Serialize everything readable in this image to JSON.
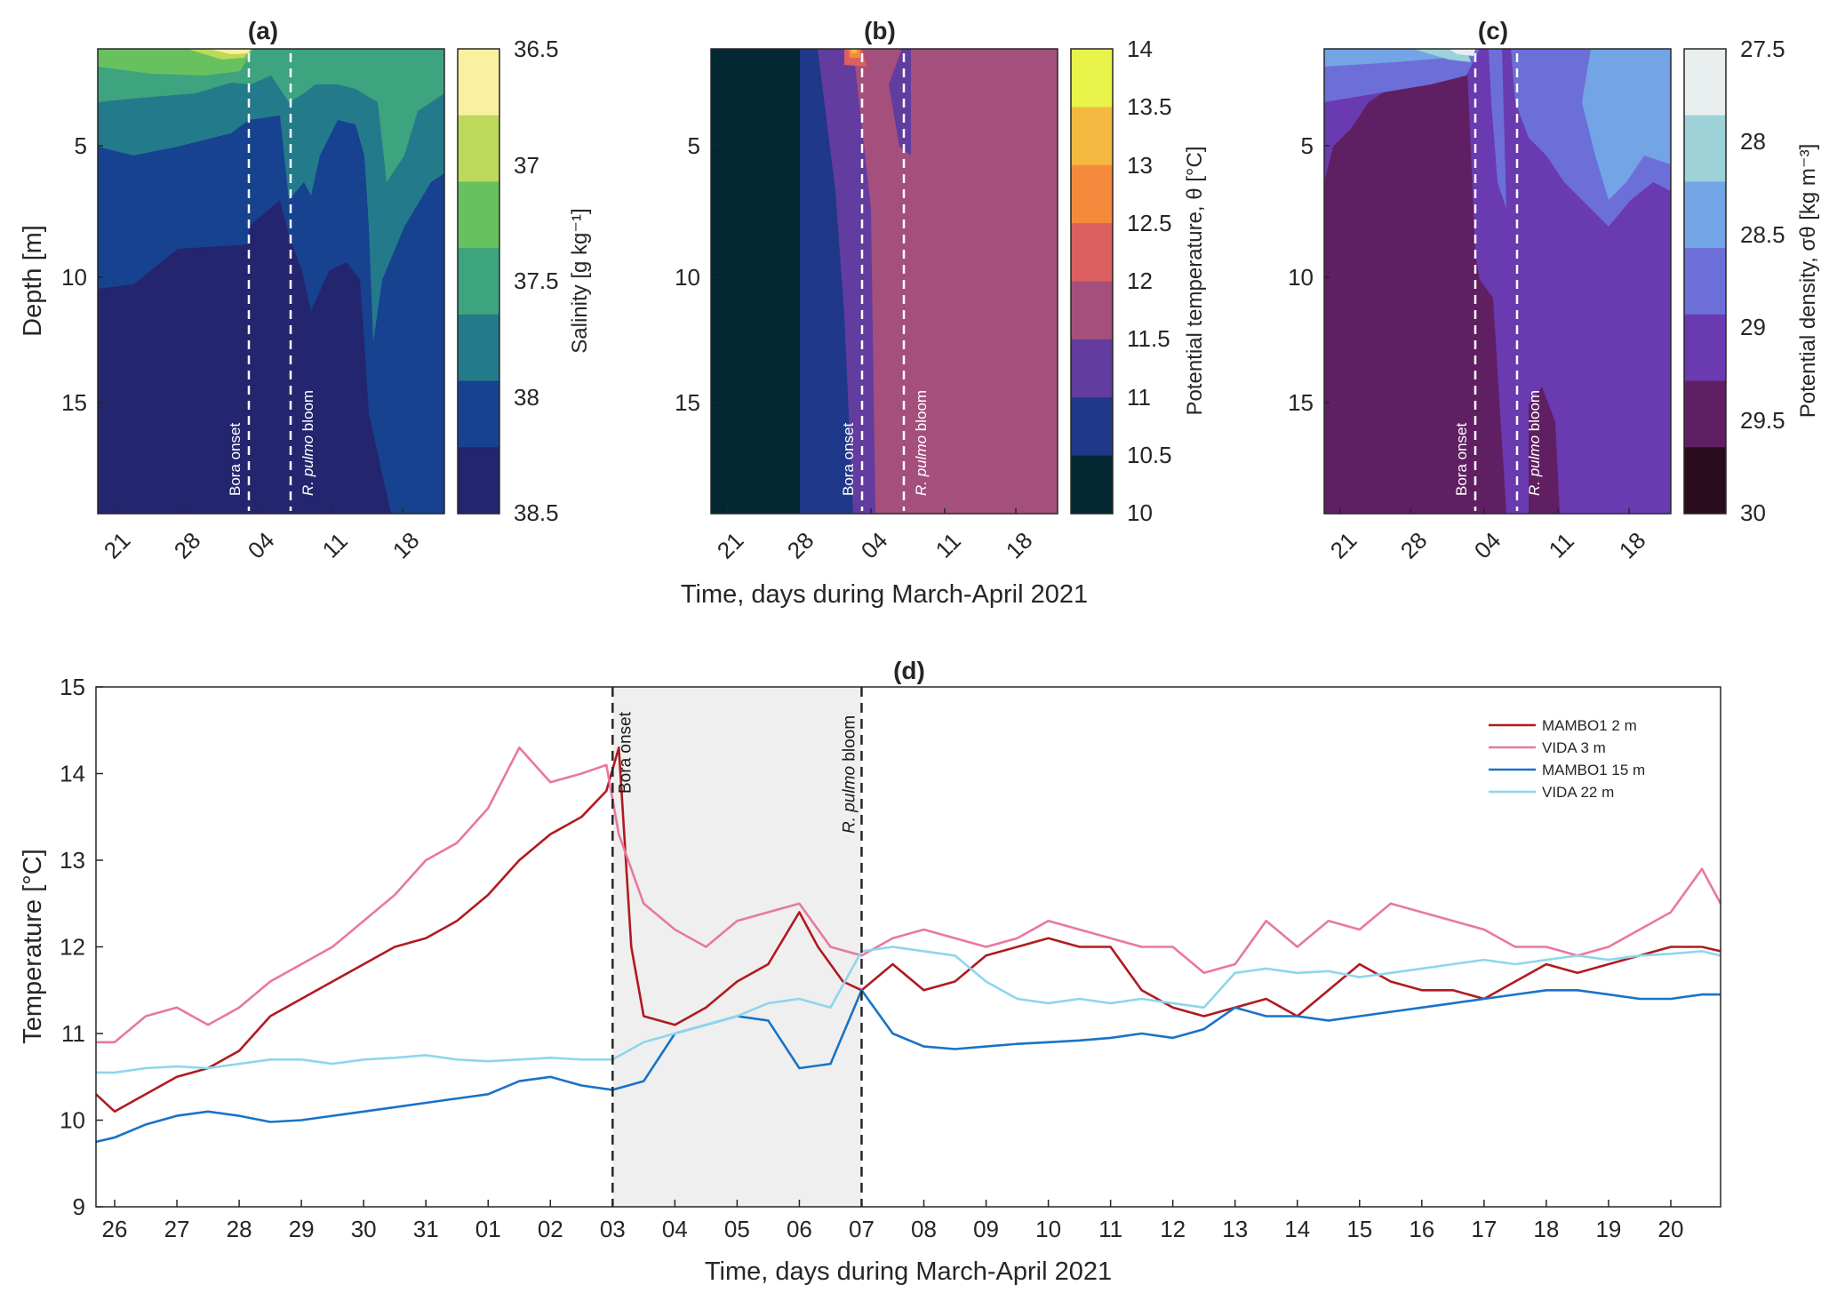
{
  "chart_data": [
    {
      "id": "a",
      "type": "heatmap",
      "title": "(a)",
      "ylabel": "Depth [m]",
      "xlabel": "",
      "x_ticks": [
        "21",
        "28",
        "04",
        "11",
        "18"
      ],
      "x_range_days": [
        0,
        32
      ],
      "y_ticks": [
        "5",
        "10",
        "15"
      ],
      "ylim": [
        1,
        19.5
      ],
      "colorbar": {
        "label": "Salinity [g kg⁻¹]",
        "ticks": [
          "36.5",
          "37",
          "37.5",
          "38",
          "38.5"
        ],
        "colors": [
          "#fbf0a0",
          "#bcd95a",
          "#67c15e",
          "#3ea37f",
          "#237a8b",
          "#17428f",
          "#24256f"
        ]
      },
      "annotations": [
        "Bora onset",
        "R. pulmo bloom"
      ],
      "events_day": [
        14,
        18
      ]
    },
    {
      "id": "b",
      "type": "heatmap",
      "title": "(b)",
      "xlabel": "Time, days during March-April 2021",
      "x_ticks": [
        "21",
        "28",
        "04",
        "11",
        "18"
      ],
      "x_range_days": [
        0,
        32
      ],
      "y_ticks": [
        "5",
        "10",
        "15"
      ],
      "ylim": [
        1,
        19.5
      ],
      "colorbar": {
        "label": "Potential temperature, θ [°C]",
        "ticks": [
          "14",
          "13.5",
          "13",
          "12.5",
          "12",
          "11.5",
          "11",
          "10.5",
          "10"
        ],
        "colors": [
          "#e9f44a",
          "#f5b941",
          "#f58a3c",
          "#dc6060",
          "#a54f7c",
          "#623c9e",
          "#1f3889",
          "#032733"
        ]
      },
      "annotations": [
        "Bora onset",
        "R. pulmo bloom"
      ],
      "events_day": [
        14,
        18
      ]
    },
    {
      "id": "c",
      "type": "heatmap",
      "title": "(c)",
      "xlabel": "",
      "x_ticks": [
        "21",
        "28",
        "04",
        "11",
        "18"
      ],
      "x_range_days": [
        0,
        32
      ],
      "y_ticks": [
        "5",
        "10",
        "15"
      ],
      "ylim": [
        1,
        19.5
      ],
      "colorbar": {
        "label": "Potential density, σθ [kg m⁻³]",
        "ticks": [
          "27.5",
          "28",
          "28.5",
          "29",
          "29.5",
          "30"
        ],
        "colors": [
          "#e8eeee",
          "#9cd2d8",
          "#72a4e6",
          "#6c6fd8",
          "#6a3ab1",
          "#601f62",
          "#2a0c1e"
        ]
      },
      "annotations": [
        "Bora onset",
        "R. pulmo bloom"
      ],
      "events_day": [
        14,
        18
      ]
    },
    {
      "id": "d",
      "type": "line",
      "title": "(d)",
      "xlabel": "Time, days during March-April 2021",
      "ylabel": "Temperature [°C]",
      "x_tick_labels": [
        "26",
        "27",
        "28",
        "29",
        "30",
        "31",
        "01",
        "02",
        "03",
        "04",
        "05",
        "06",
        "07",
        "08",
        "09",
        "10",
        "11",
        "12",
        "13",
        "14",
        "15",
        "16",
        "17",
        "18",
        "19",
        "20"
      ],
      "xlim": [
        -0.3,
        25.8
      ],
      "ylim": [
        9,
        15
      ],
      "y_ticks": [
        9,
        10,
        11,
        12,
        13,
        14,
        15
      ],
      "shaded_interval": [
        8,
        12
      ],
      "annotations": [
        {
          "x": 8,
          "label": "Bora onset"
        },
        {
          "x": 12,
          "label": "R. pulmo bloom"
        }
      ],
      "series": [
        {
          "name": "MAMBO1 2 m",
          "color": "#b01a1f",
          "x": [
            -0.3,
            0,
            0.5,
            1,
            1.5,
            2,
            2.5,
            3,
            3.5,
            4,
            4.5,
            5,
            5.5,
            6,
            6.5,
            7,
            7.5,
            7.9,
            8.1,
            8.3,
            8.5,
            9,
            9.5,
            10,
            10.5,
            11,
            11.3,
            11.7,
            12,
            12.5,
            13,
            13.5,
            14,
            14.5,
            15,
            15.5,
            16,
            16.5,
            17,
            17.5,
            18,
            18.5,
            19,
            19.5,
            20,
            20.5,
            21,
            21.5,
            22,
            22.5,
            23,
            23.5,
            24,
            24.5,
            25,
            25.5,
            25.8
          ],
          "values": [
            10.3,
            10.1,
            10.3,
            10.5,
            10.6,
            10.8,
            11.2,
            11.4,
            11.6,
            11.8,
            12.0,
            12.1,
            12.3,
            12.6,
            13.0,
            13.3,
            13.5,
            13.8,
            14.3,
            12.0,
            11.2,
            11.1,
            11.3,
            11.6,
            11.8,
            12.4,
            12.0,
            11.6,
            11.5,
            11.8,
            11.5,
            11.6,
            11.9,
            12.0,
            12.1,
            12.0,
            12.0,
            11.5,
            11.3,
            11.2,
            11.3,
            11.4,
            11.2,
            11.5,
            11.8,
            11.6,
            11.5,
            11.5,
            11.4,
            11.6,
            11.8,
            11.7,
            11.8,
            11.9,
            12.0,
            12.0,
            11.95
          ]
        },
        {
          "name": "VIDA 3 m",
          "color": "#e878a0",
          "x": [
            -0.3,
            0,
            0.5,
            1,
            1.5,
            2,
            2.5,
            3,
            3.5,
            4,
            4.5,
            5,
            5.5,
            6,
            6.5,
            7,
            7.5,
            7.9,
            8.1,
            8.5,
            9,
            9.5,
            10,
            10.5,
            11,
            11.5,
            12,
            12.5,
            13,
            13.5,
            14,
            14.5,
            15,
            15.5,
            16,
            16.5,
            17,
            17.5,
            18,
            18.5,
            19,
            19.5,
            20,
            20.5,
            21,
            21.5,
            22,
            22.5,
            23,
            23.5,
            24,
            24.5,
            25,
            25.5,
            25.8
          ],
          "values": [
            10.9,
            10.9,
            11.2,
            11.3,
            11.1,
            11.3,
            11.6,
            11.8,
            12.0,
            12.3,
            12.6,
            13.0,
            13.2,
            13.6,
            14.3,
            13.9,
            14.0,
            14.1,
            13.3,
            12.5,
            12.2,
            12.0,
            12.3,
            12.4,
            12.5,
            12.0,
            11.9,
            12.1,
            12.2,
            12.1,
            12.0,
            12.1,
            12.3,
            12.2,
            12.1,
            12.0,
            12.0,
            11.7,
            11.8,
            12.3,
            12.0,
            12.3,
            12.2,
            12.5,
            12.4,
            12.3,
            12.2,
            12.0,
            12.0,
            11.9,
            12.0,
            12.2,
            12.4,
            12.9,
            12.5
          ]
        },
        {
          "name": "MAMBO1 15 m",
          "color": "#1873c8",
          "x": [
            -0.3,
            0,
            0.5,
            1,
            1.5,
            2,
            2.5,
            3,
            3.5,
            4,
            4.5,
            5,
            5.5,
            6,
            6.5,
            7,
            7.5,
            8,
            8.5,
            9,
            9.5,
            10,
            10.5,
            11,
            11.5,
            12,
            12.5,
            13,
            13.5,
            14,
            14.5,
            15,
            15.5,
            16,
            16.5,
            17,
            17.5,
            18,
            18.5,
            19,
            19.5,
            20,
            20.5,
            21,
            21.5,
            22,
            22.5,
            23,
            23.5,
            24,
            24.5,
            25,
            25.5,
            25.8
          ],
          "values": [
            9.75,
            9.8,
            9.95,
            10.05,
            10.1,
            10.05,
            9.98,
            10.0,
            10.05,
            10.1,
            10.15,
            10.2,
            10.25,
            10.3,
            10.45,
            10.5,
            10.4,
            10.35,
            10.45,
            11.0,
            11.1,
            11.2,
            11.15,
            10.6,
            10.65,
            11.5,
            11.0,
            10.85,
            10.82,
            10.85,
            10.88,
            10.9,
            10.92,
            10.95,
            11.0,
            10.95,
            11.05,
            11.3,
            11.2,
            11.2,
            11.15,
            11.2,
            11.25,
            11.3,
            11.35,
            11.4,
            11.45,
            11.5,
            11.5,
            11.45,
            11.4,
            11.4,
            11.45,
            11.45
          ]
        },
        {
          "name": "VIDA 22 m",
          "color": "#8ed6ec",
          "x": [
            -0.3,
            0,
            0.5,
            1,
            1.5,
            2,
            2.5,
            3,
            3.5,
            4,
            4.5,
            5,
            5.5,
            6,
            6.5,
            7,
            7.5,
            8,
            8.5,
            9,
            9.5,
            10,
            10.5,
            11,
            11.5,
            12,
            12.5,
            13,
            13.5,
            14,
            14.5,
            15,
            15.5,
            16,
            16.5,
            17,
            17.5,
            18,
            18.5,
            19,
            19.5,
            20,
            20.5,
            21,
            21.5,
            22,
            22.5,
            23,
            23.5,
            24,
            24.5,
            25,
            25.5,
            25.8
          ],
          "values": [
            10.55,
            10.55,
            10.6,
            10.62,
            10.6,
            10.65,
            10.7,
            10.7,
            10.65,
            10.7,
            10.72,
            10.75,
            10.7,
            10.68,
            10.7,
            10.72,
            10.7,
            10.7,
            10.9,
            11.0,
            11.1,
            11.2,
            11.35,
            11.4,
            11.3,
            11.95,
            12.0,
            11.95,
            11.9,
            11.6,
            11.4,
            11.35,
            11.4,
            11.35,
            11.4,
            11.35,
            11.3,
            11.7,
            11.75,
            11.7,
            11.72,
            11.65,
            11.7,
            11.75,
            11.8,
            11.85,
            11.8,
            11.85,
            11.9,
            11.85,
            11.9,
            11.92,
            11.95,
            11.9
          ]
        }
      ]
    }
  ]
}
